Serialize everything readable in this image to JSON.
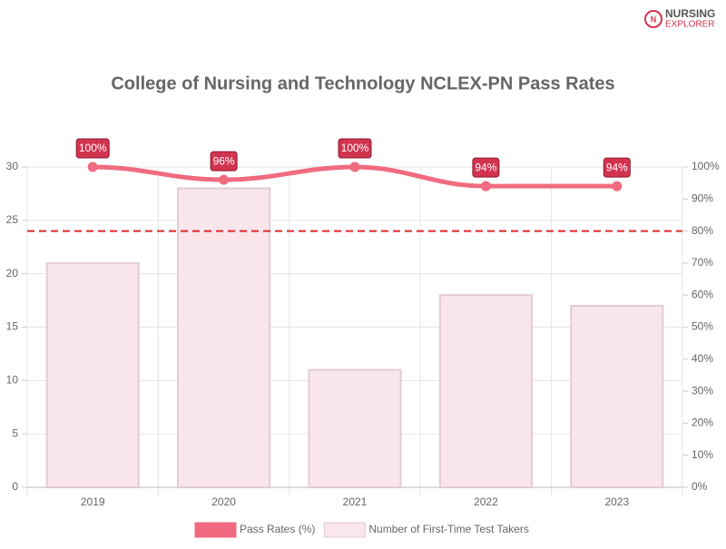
{
  "logo": {
    "line1": "NURSING",
    "line2": "EXPLORER"
  },
  "chart_data": {
    "type": "combo",
    "title": "College of Nursing and Technology NCLEX-PN Pass Rates",
    "categories": [
      "2019",
      "2020",
      "2021",
      "2022",
      "2023"
    ],
    "series": [
      {
        "name": "Pass Rates (%)",
        "type": "line",
        "axis": "y2",
        "color": "#f06b80",
        "values": [
          100,
          96,
          100,
          94,
          94
        ],
        "value_labels": [
          "100%",
          "96%",
          "100%",
          "94%",
          "94%"
        ]
      },
      {
        "name": "Number of First-Time Test Takers",
        "type": "bar",
        "axis": "y",
        "color": "#f8e6ea",
        "border_color": "#e2ccd2",
        "values": [
          21,
          28,
          11,
          18,
          17
        ]
      }
    ],
    "ylim": [
      0,
      30
    ],
    "yticks": [
      0,
      5,
      10,
      15,
      20,
      25,
      30
    ],
    "y2lim": [
      0,
      100
    ],
    "y2ticks": [
      {
        "value": 0,
        "label": "0%"
      },
      {
        "value": 10,
        "label": "10%"
      },
      {
        "value": 20,
        "label": "20%"
      },
      {
        "value": 30,
        "label": "30%"
      },
      {
        "value": 40,
        "label": "40%"
      },
      {
        "value": 50,
        "label": "50%"
      },
      {
        "value": 60,
        "label": "60%"
      },
      {
        "value": 70,
        "label": "70%"
      },
      {
        "value": 80,
        "label": "80%"
      },
      {
        "value": 90,
        "label": "90%"
      },
      {
        "value": 100,
        "label": "100%"
      }
    ],
    "reference_line": {
      "value": 80,
      "axis": "y2",
      "color": "#e0282e"
    },
    "grid": true,
    "legend": "bottom"
  }
}
